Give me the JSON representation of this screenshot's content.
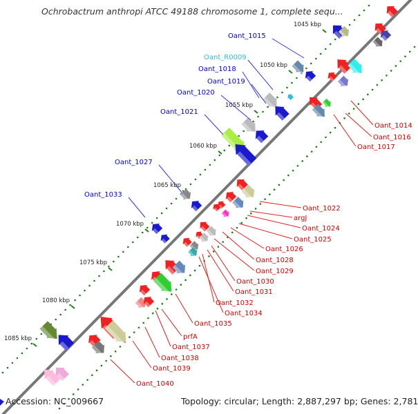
{
  "title": "Ochrobactrum anthropi ATCC 49188 chromosome 1, complete sequ...",
  "footer": {
    "accession": "Accession: NC_009667",
    "topology": "Topology: circular; Length: 2,887,297 bp; Genes: 2,781"
  },
  "colors": {
    "backbone": "#777777",
    "tick": "#1f7a1f",
    "left_label": "#0000cc",
    "left_label_rna": "#33bbdd",
    "left_line": "#3333ee",
    "right_label": "#cc0000",
    "right_line": "#dd2222"
  },
  "kbp_ticks": [
    "1045 kbp",
    "1050 kbp",
    "1055 kbp",
    "1060 kbp",
    "1065 kbp",
    "1070 kbp",
    "1075 kbp",
    "1080 kbp",
    "1085 kbp"
  ],
  "left_labels": [
    "Oant_1015",
    "Oant_R0009",
    "Oant_1018",
    "Oant_1019",
    "Oant_1020",
    "Oant_1021",
    "Oant_1027",
    "Oant_1033"
  ],
  "right_labels": [
    "Oant_1014",
    "Oant_1016",
    "Oant_1017",
    "Oant_1022",
    "argJ",
    "Oant_1024",
    "Oant_1025",
    "Oant_1026",
    "Oant_1028",
    "Oant_1029",
    "Oant_1030",
    "Oant_1031",
    "Oant_1032",
    "Oant_1034",
    "Oant_1035",
    "prfA",
    "Oant_1037",
    "Oant_1038",
    "Oant_1039",
    "Oant_1040"
  ]
}
